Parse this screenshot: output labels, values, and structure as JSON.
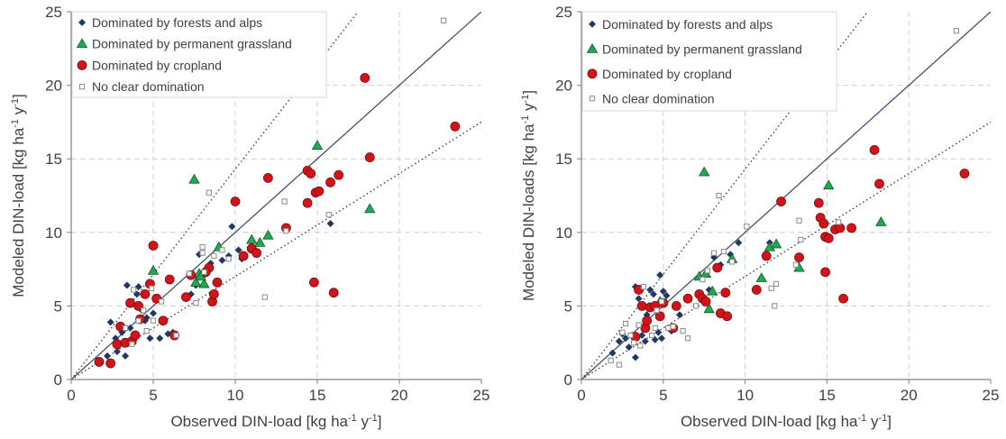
{
  "colors": {
    "forests": "#1f3864",
    "grassland": "#21a850",
    "cropland": "#d2141a",
    "noclear": "#a6a6a6",
    "identity": "#44546a",
    "grid": "#d0d0d0",
    "axis": "#808080"
  },
  "legend": [
    {
      "key": "forests",
      "label": "Dominated by forests and alps",
      "marker": "diamond"
    },
    {
      "key": "grassland",
      "label": "Dominated by permanent grassland",
      "marker": "triangle"
    },
    {
      "key": "cropland",
      "label": "Dominated by cropland",
      "marker": "circle"
    },
    {
      "key": "noclear",
      "label": "No clear domination",
      "marker": "square"
    }
  ],
  "chart_data": [
    {
      "type": "scatter",
      "xlabel_parts": [
        "Observed DIN-load [kg ha",
        "-1",
        " y",
        "-1",
        "]"
      ],
      "ylabel_parts": [
        "Modeled DIN-load [kg ha",
        "-1",
        " y",
        "-1",
        "]"
      ],
      "xlim": [
        0,
        25
      ],
      "ylim": [
        0,
        25
      ],
      "xticks": [
        "0",
        "5",
        "10",
        "15",
        "20",
        "25"
      ],
      "yticks": [
        "0",
        "5",
        "10",
        "15",
        "20",
        "25"
      ],
      "grid": true,
      "legend_position": "top-left",
      "reference_lines": [
        {
          "style": "solid",
          "slope": 1.0
        },
        {
          "style": "dotted",
          "slope": 1.43
        },
        {
          "style": "dotted",
          "slope": 0.7
        }
      ],
      "series": [
        {
          "key": "forests",
          "points": [
            [
              2.2,
              1.6
            ],
            [
              2.4,
              3.9
            ],
            [
              2.7,
              2.8
            ],
            [
              2.8,
              1.9
            ],
            [
              3.1,
              3.2
            ],
            [
              3.3,
              1.6
            ],
            [
              3.4,
              6.4
            ],
            [
              3.6,
              3.5
            ],
            [
              4.0,
              5.8
            ],
            [
              4.1,
              6.3
            ],
            [
              4.3,
              4.7
            ],
            [
              4.6,
              4.2
            ],
            [
              4.8,
              2.8
            ],
            [
              5.0,
              4.5
            ],
            [
              5.4,
              2.8
            ],
            [
              5.9,
              3.1
            ],
            [
              7.3,
              5.8
            ],
            [
              7.6,
              6.4
            ],
            [
              7.8,
              8.5
            ],
            [
              8.1,
              7.1
            ],
            [
              8.5,
              7.9
            ],
            [
              9.2,
              8.1
            ],
            [
              9.6,
              8.4
            ],
            [
              9.8,
              10.4
            ],
            [
              10.2,
              8.8
            ],
            [
              10.4,
              8.2
            ],
            [
              15.8,
              10.6
            ],
            [
              6.2,
              3.2
            ],
            [
              4.5,
              4.0
            ]
          ]
        },
        {
          "key": "grassland",
          "points": [
            [
              5.0,
              7.4
            ],
            [
              7.5,
              13.6
            ],
            [
              7.6,
              6.6
            ],
            [
              7.8,
              7.2
            ],
            [
              8.1,
              6.5
            ],
            [
              9.0,
              9.0
            ],
            [
              11.0,
              9.5
            ],
            [
              11.5,
              9.3
            ],
            [
              12.0,
              9.8
            ],
            [
              15.0,
              15.9
            ],
            [
              18.2,
              11.6
            ],
            [
              7.9,
              7.0
            ]
          ]
        },
        {
          "key": "cropland",
          "points": [
            [
              1.7,
              1.2
            ],
            [
              2.4,
              1.1
            ],
            [
              2.8,
              2.4
            ],
            [
              3.0,
              3.6
            ],
            [
              3.3,
              2.5
            ],
            [
              3.6,
              5.2
            ],
            [
              3.7,
              2.6
            ],
            [
              3.9,
              3.0
            ],
            [
              4.1,
              5.0
            ],
            [
              4.2,
              4.1
            ],
            [
              4.5,
              5.8
            ],
            [
              4.8,
              6.5
            ],
            [
              5.0,
              9.1
            ],
            [
              5.2,
              5.5
            ],
            [
              5.6,
              4.0
            ],
            [
              6.0,
              6.8
            ],
            [
              6.3,
              3.0
            ],
            [
              7.0,
              5.6
            ],
            [
              7.3,
              7.1
            ],
            [
              8.4,
              7.6
            ],
            [
              8.6,
              5.3
            ],
            [
              8.9,
              6.6
            ],
            [
              10.0,
              12.1
            ],
            [
              10.5,
              8.4
            ],
            [
              11.0,
              8.9
            ],
            [
              11.3,
              8.6
            ],
            [
              12.0,
              13.7
            ],
            [
              13.1,
              10.3
            ],
            [
              14.4,
              14.2
            ],
            [
              14.6,
              14.0
            ],
            [
              14.8,
              6.6
            ],
            [
              14.9,
              12.7
            ],
            [
              15.1,
              12.8
            ],
            [
              15.8,
              13.4
            ],
            [
              16.0,
              5.9
            ],
            [
              16.3,
              13.9
            ],
            [
              17.9,
              20.5
            ],
            [
              18.2,
              15.1
            ],
            [
              23.4,
              17.2
            ],
            [
              8.2,
              7.3
            ],
            [
              14.4,
              12.0
            ],
            [
              8.7,
              5.8
            ]
          ]
        },
        {
          "key": "noclear",
          "points": [
            [
              3.3,
              3.5
            ],
            [
              3.7,
              2.4
            ],
            [
              3.8,
              6.1
            ],
            [
              4.1,
              4.0
            ],
            [
              4.4,
              4.7
            ],
            [
              4.6,
              3.3
            ],
            [
              5.0,
              4.0
            ],
            [
              5.5,
              5.3
            ],
            [
              6.4,
              3.0
            ],
            [
              7.2,
              7.2
            ],
            [
              7.6,
              5.2
            ],
            [
              8.1,
              7.3
            ],
            [
              8.0,
              9.0
            ],
            [
              8.4,
              12.7
            ],
            [
              8.7,
              8.4
            ],
            [
              9.2,
              8.8
            ],
            [
              9.6,
              8.2
            ],
            [
              11.8,
              5.6
            ],
            [
              13.0,
              12.1
            ],
            [
              13.1,
              10.1
            ],
            [
              15.7,
              11.2
            ],
            [
              22.7,
              24.4
            ],
            [
              4.9,
              6.2
            ],
            [
              8.0,
              8.6
            ]
          ]
        }
      ]
    },
    {
      "type": "scatter",
      "xlabel_parts": [
        "Observed DIN-load [kg ha",
        "-1",
        " y",
        "-1",
        "]"
      ],
      "ylabel_parts": [
        "Modeled DIN-loads [kg ha",
        "-1",
        " y",
        "-1",
        "]"
      ],
      "xlim": [
        0,
        25
      ],
      "ylim": [
        0,
        25
      ],
      "xticks": [
        "0",
        "5",
        "10",
        "15",
        "20",
        "25"
      ],
      "yticks": [
        "0",
        "5",
        "10",
        "15",
        "20",
        "25"
      ],
      "grid": true,
      "legend_position": "top-left",
      "reference_lines": [
        {
          "style": "solid",
          "slope": 1.0
        },
        {
          "style": "dotted",
          "slope": 1.43
        },
        {
          "style": "dotted",
          "slope": 0.7
        }
      ],
      "series": [
        {
          "key": "forests",
          "points": [
            [
              1.9,
              1.8
            ],
            [
              2.3,
              2.6
            ],
            [
              2.5,
              3.1
            ],
            [
              2.7,
              2.8
            ],
            [
              2.9,
              2.2
            ],
            [
              3.1,
              3.0
            ],
            [
              3.3,
              1.5
            ],
            [
              3.3,
              6.3
            ],
            [
              3.5,
              5.5
            ],
            [
              3.7,
              3.0
            ],
            [
              3.9,
              2.6
            ],
            [
              4.1,
              5.0
            ],
            [
              4.2,
              6.1
            ],
            [
              4.5,
              2.7
            ],
            [
              4.7,
              3.2
            ],
            [
              4.8,
              7.1
            ],
            [
              4.9,
              2.8
            ],
            [
              5.0,
              6.0
            ],
            [
              5.2,
              5.7
            ],
            [
              6.0,
              4.4
            ],
            [
              7.5,
              5.5
            ],
            [
              7.8,
              6.1
            ],
            [
              8.1,
              8.3
            ],
            [
              8.5,
              7.8
            ],
            [
              9.1,
              8.5
            ],
            [
              9.6,
              9.3
            ],
            [
              11.5,
              9.3
            ],
            [
              5.5,
              3.3
            ],
            [
              4.0,
              4.4
            ],
            [
              3.6,
              6.1
            ],
            [
              4.4,
              5.8
            ]
          ]
        },
        {
          "key": "grassland",
          "points": [
            [
              4.8,
              5.3
            ],
            [
              7.2,
              7.0
            ],
            [
              7.5,
              14.1
            ],
            [
              7.6,
              7.2
            ],
            [
              7.8,
              4.8
            ],
            [
              8.0,
              6.0
            ],
            [
              9.2,
              8.2
            ],
            [
              11.0,
              6.9
            ],
            [
              11.5,
              9.0
            ],
            [
              11.9,
              9.2
            ],
            [
              13.3,
              7.6
            ],
            [
              15.1,
              13.2
            ],
            [
              18.3,
              10.7
            ]
          ]
        },
        {
          "key": "cropland",
          "points": [
            [
              3.3,
              2.9
            ],
            [
              3.5,
              6.1
            ],
            [
              3.7,
              5.0
            ],
            [
              3.9,
              3.5
            ],
            [
              4.0,
              4.0
            ],
            [
              4.2,
              4.9
            ],
            [
              4.5,
              5.0
            ],
            [
              4.8,
              4.3
            ],
            [
              5.0,
              5.2
            ],
            [
              5.6,
              3.5
            ],
            [
              5.8,
              5.0
            ],
            [
              6.5,
              5.5
            ],
            [
              7.2,
              5.8
            ],
            [
              7.4,
              5.5
            ],
            [
              7.6,
              5.3
            ],
            [
              8.3,
              7.6
            ],
            [
              8.5,
              4.5
            ],
            [
              8.8,
              5.9
            ],
            [
              8.9,
              4.3
            ],
            [
              10.7,
              6.1
            ],
            [
              11.3,
              8.4
            ],
            [
              12.2,
              12.1
            ],
            [
              13.3,
              8.3
            ],
            [
              14.5,
              12.0
            ],
            [
              14.6,
              11.0
            ],
            [
              14.8,
              10.6
            ],
            [
              14.9,
              9.7
            ],
            [
              14.9,
              7.3
            ],
            [
              15.1,
              9.6
            ],
            [
              15.5,
              10.2
            ],
            [
              15.8,
              10.3
            ],
            [
              16.0,
              5.5
            ],
            [
              16.5,
              10.3
            ],
            [
              17.9,
              15.6
            ],
            [
              18.2,
              13.3
            ],
            [
              23.4,
              14.0
            ]
          ]
        },
        {
          "key": "noclear",
          "points": [
            [
              1.8,
              1.3
            ],
            [
              2.3,
              1.0
            ],
            [
              2.5,
              3.2
            ],
            [
              2.7,
              3.8
            ],
            [
              3.0,
              3.0
            ],
            [
              3.2,
              2.5
            ],
            [
              3.5,
              3.7
            ],
            [
              3.6,
              2.3
            ],
            [
              3.8,
              6.3
            ],
            [
              4.3,
              3.0
            ],
            [
              4.5,
              3.5
            ],
            [
              4.9,
              5.3
            ],
            [
              5.3,
              3.5
            ],
            [
              5.6,
              3.6
            ],
            [
              6.2,
              3.3
            ],
            [
              6.5,
              2.8
            ],
            [
              7.4,
              6.8
            ],
            [
              7.7,
              7.4
            ],
            [
              8.1,
              8.6
            ],
            [
              8.4,
              12.5
            ],
            [
              8.7,
              8.7
            ],
            [
              9.2,
              8.0
            ],
            [
              10.1,
              10.4
            ],
            [
              11.6,
              6.2
            ],
            [
              11.8,
              5.0
            ],
            [
              11.9,
              6.5
            ],
            [
              13.1,
              7.8
            ],
            [
              13.3,
              10.8
            ],
            [
              13.4,
              9.5
            ],
            [
              15.7,
              10.7
            ],
            [
              22.9,
              23.7
            ],
            [
              4.6,
              4.7
            ],
            [
              7.0,
              5.0
            ]
          ]
        }
      ]
    }
  ]
}
